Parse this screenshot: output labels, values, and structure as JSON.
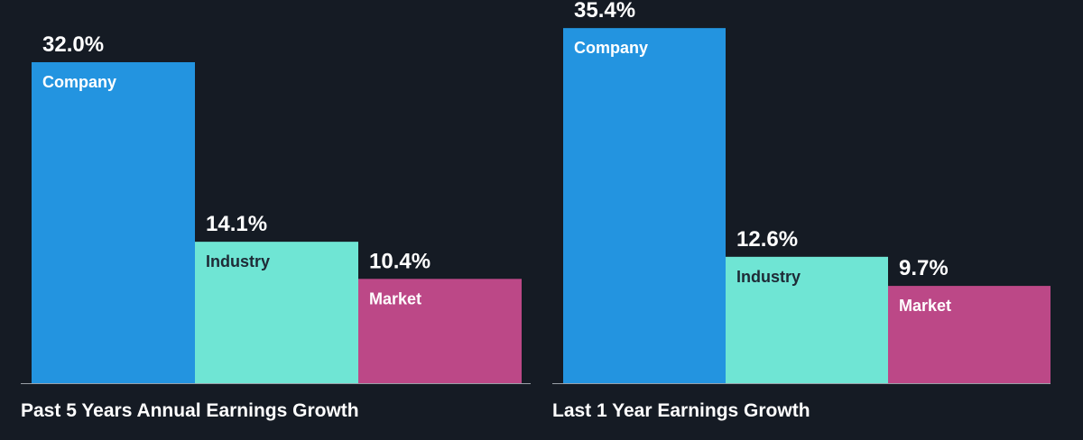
{
  "colors": {
    "background": "#151b24",
    "company": "#2394e0",
    "industry": "#6fe5d4",
    "market": "#bc4887",
    "axis": "#9aa0a8"
  },
  "chart_data": [
    {
      "type": "bar",
      "title": "Past 5 Years Annual Earnings Growth",
      "categories": [
        "Company",
        "Industry",
        "Market"
      ],
      "values": [
        32.0,
        14.1,
        10.4
      ],
      "value_labels": [
        "32.0%",
        "14.1%",
        "10.4%"
      ],
      "unit": "%",
      "ylim": [
        0,
        38.2
      ],
      "grid": false,
      "legend": "none"
    },
    {
      "type": "bar",
      "title": "Last 1 Year Earnings Growth",
      "categories": [
        "Company",
        "Industry",
        "Market"
      ],
      "values": [
        35.4,
        12.6,
        9.7
      ],
      "value_labels": [
        "35.4%",
        "12.6%",
        "9.7%"
      ],
      "unit": "%",
      "ylim": [
        0,
        38.2
      ],
      "grid": false,
      "legend": "none"
    }
  ]
}
